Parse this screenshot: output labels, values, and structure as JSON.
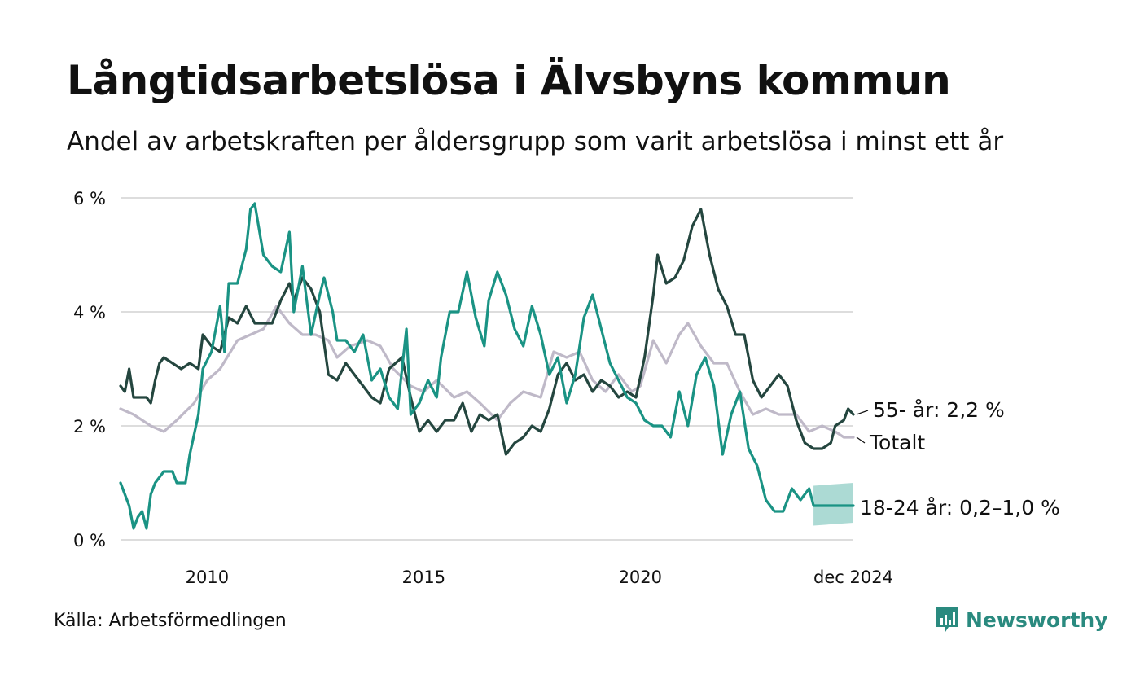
{
  "header": {
    "title": "Långtidsarbetslösa i Älvsbyns kommun",
    "subtitle": "Andel av arbetskraften per åldersgrupp som varit arbetslösa i minst ett år"
  },
  "footer": {
    "source": "Källa: Arbetsförmedlingen",
    "brand": "Newsworthy"
  },
  "colors": {
    "young": "#1a9384",
    "young_band": "#a8d8d2",
    "old": "#24463f",
    "total": "#bfb9c8",
    "grid": "#dddddd"
  },
  "chart_data": {
    "type": "line",
    "title": "Långtidsarbetslösa i Älvsbyns kommun",
    "ylim": [
      0,
      6
    ],
    "y_ticks": [
      {
        "value": 0,
        "label": "0 %"
      },
      {
        "value": 2,
        "label": "2 %"
      },
      {
        "value": 4,
        "label": "4 %"
      },
      {
        "value": 6,
        "label": "6 %"
      }
    ],
    "x_ticks": [
      {
        "value": 2010,
        "label": "2010"
      },
      {
        "value": 2015,
        "label": "2015"
      },
      {
        "value": 2020,
        "label": "2020"
      },
      {
        "value": 2024.92,
        "label": "dec 2024"
      }
    ],
    "xlim": [
      2008.0,
      2024.92
    ],
    "grid": true,
    "series": [
      {
        "name": "Totalt",
        "label": "Totalt",
        "color_key": "total",
        "points": [
          [
            2008.0,
            2.3
          ],
          [
            2008.3,
            2.2
          ],
          [
            2008.7,
            2.0
          ],
          [
            2009.0,
            1.9
          ],
          [
            2009.3,
            2.1
          ],
          [
            2009.7,
            2.4
          ],
          [
            2010.0,
            2.8
          ],
          [
            2010.3,
            3.0
          ],
          [
            2010.7,
            3.5
          ],
          [
            2011.0,
            3.6
          ],
          [
            2011.3,
            3.7
          ],
          [
            2011.6,
            4.1
          ],
          [
            2011.9,
            3.8
          ],
          [
            2012.2,
            3.6
          ],
          [
            2012.5,
            3.6
          ],
          [
            2012.8,
            3.5
          ],
          [
            2013.0,
            3.2
          ],
          [
            2013.3,
            3.4
          ],
          [
            2013.7,
            3.5
          ],
          [
            2014.0,
            3.4
          ],
          [
            2014.3,
            3.0
          ],
          [
            2014.7,
            2.7
          ],
          [
            2015.0,
            2.6
          ],
          [
            2015.3,
            2.8
          ],
          [
            2015.7,
            2.5
          ],
          [
            2016.0,
            2.6
          ],
          [
            2016.3,
            2.4
          ],
          [
            2016.7,
            2.1
          ],
          [
            2017.0,
            2.4
          ],
          [
            2017.3,
            2.6
          ],
          [
            2017.7,
            2.5
          ],
          [
            2018.0,
            3.3
          ],
          [
            2018.3,
            3.2
          ],
          [
            2018.6,
            3.3
          ],
          [
            2018.9,
            2.8
          ],
          [
            2019.2,
            2.6
          ],
          [
            2019.5,
            2.9
          ],
          [
            2019.8,
            2.6
          ],
          [
            2020.0,
            2.7
          ],
          [
            2020.3,
            3.5
          ],
          [
            2020.6,
            3.1
          ],
          [
            2020.9,
            3.6
          ],
          [
            2021.1,
            3.8
          ],
          [
            2021.4,
            3.4
          ],
          [
            2021.7,
            3.1
          ],
          [
            2022.0,
            3.1
          ],
          [
            2022.3,
            2.6
          ],
          [
            2022.6,
            2.2
          ],
          [
            2022.9,
            2.3
          ],
          [
            2023.2,
            2.2
          ],
          [
            2023.6,
            2.2
          ],
          [
            2023.9,
            1.9
          ],
          [
            2024.2,
            2.0
          ],
          [
            2024.5,
            1.9
          ],
          [
            2024.7,
            1.8
          ],
          [
            2024.92,
            1.8
          ]
        ]
      },
      {
        "name": "55- år",
        "label": "55- år: 2,2 %",
        "color_key": "old",
        "points": [
          [
            2008.0,
            2.7
          ],
          [
            2008.1,
            2.6
          ],
          [
            2008.2,
            3.0
          ],
          [
            2008.3,
            2.5
          ],
          [
            2008.6,
            2.5
          ],
          [
            2008.7,
            2.4
          ],
          [
            2008.8,
            2.8
          ],
          [
            2008.9,
            3.1
          ],
          [
            2009.0,
            3.2
          ],
          [
            2009.2,
            3.1
          ],
          [
            2009.4,
            3.0
          ],
          [
            2009.6,
            3.1
          ],
          [
            2009.8,
            3.0
          ],
          [
            2009.9,
            3.6
          ],
          [
            2010.1,
            3.4
          ],
          [
            2010.3,
            3.3
          ],
          [
            2010.5,
            3.9
          ],
          [
            2010.7,
            3.8
          ],
          [
            2010.9,
            4.1
          ],
          [
            2011.1,
            3.8
          ],
          [
            2011.3,
            3.8
          ],
          [
            2011.5,
            3.8
          ],
          [
            2011.7,
            4.2
          ],
          [
            2011.9,
            4.5
          ],
          [
            2012.0,
            4.2
          ],
          [
            2012.2,
            4.6
          ],
          [
            2012.4,
            4.4
          ],
          [
            2012.6,
            4.0
          ],
          [
            2012.8,
            2.9
          ],
          [
            2013.0,
            2.8
          ],
          [
            2013.2,
            3.1
          ],
          [
            2013.4,
            2.9
          ],
          [
            2013.6,
            2.7
          ],
          [
            2013.8,
            2.5
          ],
          [
            2014.0,
            2.4
          ],
          [
            2014.2,
            3.0
          ],
          [
            2014.5,
            3.2
          ],
          [
            2014.7,
            2.5
          ],
          [
            2014.9,
            1.9
          ],
          [
            2015.1,
            2.1
          ],
          [
            2015.3,
            1.9
          ],
          [
            2015.5,
            2.1
          ],
          [
            2015.7,
            2.1
          ],
          [
            2015.9,
            2.4
          ],
          [
            2016.1,
            1.9
          ],
          [
            2016.3,
            2.2
          ],
          [
            2016.5,
            2.1
          ],
          [
            2016.7,
            2.2
          ],
          [
            2016.9,
            1.5
          ],
          [
            2017.1,
            1.7
          ],
          [
            2017.3,
            1.8
          ],
          [
            2017.5,
            2.0
          ],
          [
            2017.7,
            1.9
          ],
          [
            2017.9,
            2.3
          ],
          [
            2018.1,
            2.9
          ],
          [
            2018.3,
            3.1
          ],
          [
            2018.5,
            2.8
          ],
          [
            2018.7,
            2.9
          ],
          [
            2018.9,
            2.6
          ],
          [
            2019.1,
            2.8
          ],
          [
            2019.3,
            2.7
          ],
          [
            2019.5,
            2.5
          ],
          [
            2019.7,
            2.6
          ],
          [
            2019.9,
            2.5
          ],
          [
            2020.1,
            3.2
          ],
          [
            2020.3,
            4.3
          ],
          [
            2020.4,
            5.0
          ],
          [
            2020.6,
            4.5
          ],
          [
            2020.8,
            4.6
          ],
          [
            2021.0,
            4.9
          ],
          [
            2021.2,
            5.5
          ],
          [
            2021.4,
            5.8
          ],
          [
            2021.6,
            5.0
          ],
          [
            2021.8,
            4.4
          ],
          [
            2022.0,
            4.1
          ],
          [
            2022.2,
            3.6
          ],
          [
            2022.4,
            3.6
          ],
          [
            2022.6,
            2.8
          ],
          [
            2022.8,
            2.5
          ],
          [
            2023.0,
            2.7
          ],
          [
            2023.2,
            2.9
          ],
          [
            2023.4,
            2.7
          ],
          [
            2023.6,
            2.1
          ],
          [
            2023.8,
            1.7
          ],
          [
            2024.0,
            1.6
          ],
          [
            2024.2,
            1.6
          ],
          [
            2024.4,
            1.7
          ],
          [
            2024.5,
            2.0
          ],
          [
            2024.7,
            2.1
          ],
          [
            2024.8,
            2.3
          ],
          [
            2024.92,
            2.2
          ]
        ]
      },
      {
        "name": "18-24 år",
        "label": "18-24 år: 0,2–1,0 %",
        "color_key": "young",
        "points": [
          [
            2008.0,
            1.0
          ],
          [
            2008.1,
            0.8
          ],
          [
            2008.2,
            0.6
          ],
          [
            2008.3,
            0.2
          ],
          [
            2008.4,
            0.4
          ],
          [
            2008.5,
            0.5
          ],
          [
            2008.6,
            0.2
          ],
          [
            2008.7,
            0.8
          ],
          [
            2008.8,
            1.0
          ],
          [
            2009.0,
            1.2
          ],
          [
            2009.2,
            1.2
          ],
          [
            2009.3,
            1.0
          ],
          [
            2009.5,
            1.0
          ],
          [
            2009.6,
            1.5
          ],
          [
            2009.8,
            2.2
          ],
          [
            2009.9,
            3.0
          ],
          [
            2010.1,
            3.3
          ],
          [
            2010.3,
            4.1
          ],
          [
            2010.4,
            3.3
          ],
          [
            2010.5,
            4.5
          ],
          [
            2010.7,
            4.5
          ],
          [
            2010.9,
            5.1
          ],
          [
            2011.0,
            5.8
          ],
          [
            2011.1,
            5.9
          ],
          [
            2011.3,
            5.0
          ],
          [
            2011.5,
            4.8
          ],
          [
            2011.7,
            4.7
          ],
          [
            2011.9,
            5.4
          ],
          [
            2012.0,
            4.0
          ],
          [
            2012.2,
            4.8
          ],
          [
            2012.4,
            3.6
          ],
          [
            2012.6,
            4.3
          ],
          [
            2012.7,
            4.6
          ],
          [
            2012.9,
            4.0
          ],
          [
            2013.0,
            3.5
          ],
          [
            2013.2,
            3.5
          ],
          [
            2013.4,
            3.3
          ],
          [
            2013.6,
            3.6
          ],
          [
            2013.8,
            2.8
          ],
          [
            2014.0,
            3.0
          ],
          [
            2014.2,
            2.5
          ],
          [
            2014.4,
            2.3
          ],
          [
            2014.6,
            3.7
          ],
          [
            2014.7,
            2.2
          ],
          [
            2014.9,
            2.4
          ],
          [
            2015.1,
            2.8
          ],
          [
            2015.3,
            2.5
          ],
          [
            2015.4,
            3.2
          ],
          [
            2015.6,
            4.0
          ],
          [
            2015.8,
            4.0
          ],
          [
            2016.0,
            4.7
          ],
          [
            2016.2,
            3.9
          ],
          [
            2016.4,
            3.4
          ],
          [
            2016.5,
            4.2
          ],
          [
            2016.7,
            4.7
          ],
          [
            2016.9,
            4.3
          ],
          [
            2017.1,
            3.7
          ],
          [
            2017.3,
            3.4
          ],
          [
            2017.5,
            4.1
          ],
          [
            2017.7,
            3.6
          ],
          [
            2017.9,
            2.9
          ],
          [
            2018.1,
            3.2
          ],
          [
            2018.3,
            2.4
          ],
          [
            2018.5,
            2.9
          ],
          [
            2018.7,
            3.9
          ],
          [
            2018.9,
            4.3
          ],
          [
            2019.1,
            3.7
          ],
          [
            2019.3,
            3.1
          ],
          [
            2019.5,
            2.8
          ],
          [
            2019.7,
            2.5
          ],
          [
            2019.9,
            2.4
          ],
          [
            2020.1,
            2.1
          ],
          [
            2020.3,
            2.0
          ],
          [
            2020.5,
            2.0
          ],
          [
            2020.7,
            1.8
          ],
          [
            2020.9,
            2.6
          ],
          [
            2021.1,
            2.0
          ],
          [
            2021.3,
            2.9
          ],
          [
            2021.5,
            3.2
          ],
          [
            2021.7,
            2.7
          ],
          [
            2021.9,
            1.5
          ],
          [
            2022.1,
            2.2
          ],
          [
            2022.3,
            2.6
          ],
          [
            2022.5,
            1.6
          ],
          [
            2022.7,
            1.3
          ],
          [
            2022.9,
            0.7
          ],
          [
            2023.1,
            0.5
          ],
          [
            2023.3,
            0.5
          ],
          [
            2023.5,
            0.9
          ],
          [
            2023.7,
            0.7
          ],
          [
            2023.9,
            0.9
          ],
          [
            2024.0,
            0.6
          ],
          [
            2024.5,
            0.6
          ],
          [
            2024.92,
            0.6
          ]
        ],
        "uncertainty_band": {
          "x_start": 2024.0,
          "x_end": 2024.92,
          "low": [
            0.25,
            0.3
          ],
          "high": [
            0.95,
            1.0
          ]
        }
      }
    ]
  }
}
